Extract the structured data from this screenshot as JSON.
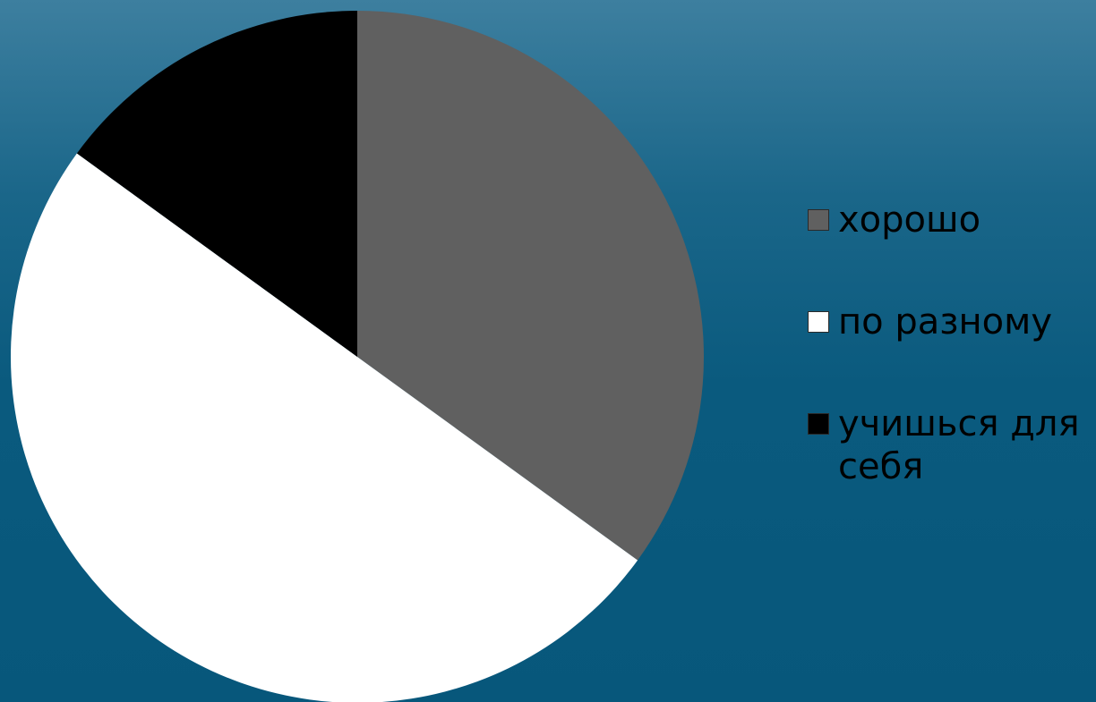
{
  "chart_data": {
    "type": "pie",
    "slices": [
      {
        "label": "хорошо",
        "value": 35,
        "color": "#606060"
      },
      {
        "label": "по разному",
        "value": 50,
        "color": "#ffffff"
      },
      {
        "label": "учишься для себя",
        "value": 15,
        "color": "#000000"
      }
    ],
    "start_angle": "12 o'clock",
    "direction": "clockwise",
    "legend_position": "right"
  }
}
